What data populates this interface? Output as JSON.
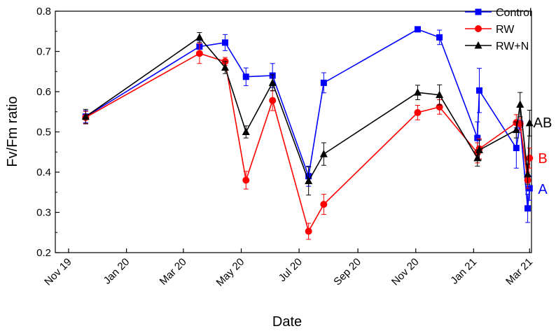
{
  "chart_data": {
    "type": "line",
    "title": "",
    "xlabel": "Date",
    "ylabel": "Fv/Fm ratio",
    "ylim": [
      0.2,
      0.8
    ],
    "yticks": [
      "0.2",
      "0.3",
      "0.4",
      "0.5",
      "0.6",
      "0.7",
      "0.8"
    ],
    "xlim_days": [
      -14,
      488
    ],
    "x_unit": "days since 2019-11-01",
    "xticks": [
      {
        "day": 0,
        "label": "Nov 19"
      },
      {
        "day": 61,
        "label": "Jan 20"
      },
      {
        "day": 121,
        "label": "Mar 20"
      },
      {
        "day": 182,
        "label": "May 20"
      },
      {
        "day": 243,
        "label": "Jul 20"
      },
      {
        "day": 305,
        "label": "Sep 20"
      },
      {
        "day": 366,
        "label": "Nov 20"
      },
      {
        "day": 427,
        "label": "Jan 21"
      },
      {
        "day": 486,
        "label": "Mar 21"
      }
    ],
    "legend": "top-right",
    "series": [
      {
        "name": "Control",
        "color": "#0000ff",
        "marker": "square",
        "x": [
          18,
          138,
          165,
          187,
          215,
          253,
          269,
          368,
          391,
          431,
          433,
          472,
          476,
          484,
          486
        ],
        "y": [
          0.538,
          0.712,
          0.722,
          0.637,
          0.64,
          0.39,
          0.622,
          0.755,
          0.735,
          0.485,
          0.603,
          0.46,
          0.52,
          0.31,
          0.36
        ],
        "err": [
          0.015,
          0.015,
          0.02,
          0.022,
          0.03,
          0.025,
          0.025,
          0.005,
          0.018,
          0.04,
          0.055,
          0.05,
          0.01,
          0.035,
          0.03
        ]
      },
      {
        "name": "RW",
        "color": "#ff0000",
        "marker": "circle",
        "x": [
          18,
          138,
          165,
          187,
          215,
          253,
          269,
          368,
          391,
          431,
          433,
          472,
          476,
          484,
          486
        ],
        "y": [
          0.536,
          0.695,
          0.675,
          0.38,
          0.578,
          0.253,
          0.32,
          0.548,
          0.562,
          0.448,
          0.458,
          0.523,
          0.52,
          0.38,
          0.435
        ],
        "err": [
          0.015,
          0.025,
          0.01,
          0.022,
          0.025,
          0.02,
          0.025,
          0.018,
          0.018,
          0.025,
          0.025,
          0.02,
          0.015,
          0.02,
          0.025
        ]
      },
      {
        "name": "RW+N",
        "color": "#000000",
        "marker": "triangle",
        "x": [
          18,
          138,
          165,
          187,
          215,
          253,
          269,
          368,
          391,
          431,
          433,
          472,
          476,
          484,
          486
        ],
        "y": [
          0.538,
          0.735,
          0.66,
          0.5,
          0.622,
          0.378,
          0.445,
          0.598,
          0.592,
          0.435,
          0.455,
          0.505,
          0.568,
          0.395,
          0.522
        ],
        "err": [
          0.018,
          0.012,
          0.015,
          0.015,
          0.02,
          0.035,
          0.028,
          0.018,
          0.025,
          0.02,
          0.025,
          0.02,
          0.03,
          0.025,
          0.032
        ]
      }
    ],
    "annotations": [
      {
        "text": "AB",
        "color": "#000000",
        "series": "RW+N"
      },
      {
        "text": "B",
        "color": "#ff0000",
        "series": "RW"
      },
      {
        "text": "A",
        "color": "#0000ff",
        "series": "Control"
      }
    ]
  }
}
